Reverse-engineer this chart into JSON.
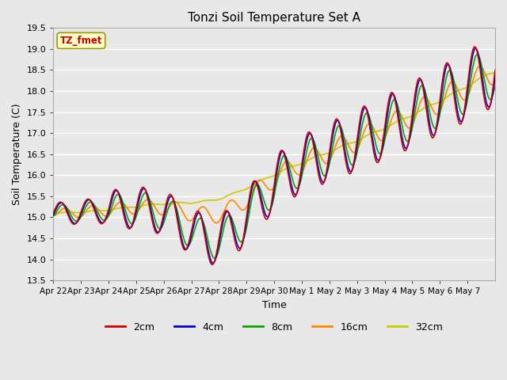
{
  "title": "Tonzi Soil Temperature Set A",
  "xlabel": "Time",
  "ylabel": "Soil Temperature (C)",
  "ylim": [
    13.5,
    19.5
  ],
  "yticks": [
    13.5,
    14.0,
    14.5,
    15.0,
    15.5,
    16.0,
    16.5,
    17.0,
    17.5,
    18.0,
    18.5,
    19.0,
    19.5
  ],
  "color_2cm": "#cc0000",
  "color_4cm": "#0000cc",
  "color_8cm": "#00aa00",
  "color_16cm": "#ff8800",
  "color_32cm": "#cccc00",
  "annotation_text": "TZ_fmet",
  "annotation_fg": "#cc0000",
  "annotation_bg": "#ffffcc",
  "bg_color": "#e8e8e8",
  "grid_color": "#ffffff",
  "legend_items": [
    "2cm",
    "4cm",
    "8cm",
    "16cm",
    "32cm"
  ],
  "legend_colors": [
    "#cc0000",
    "#0000cc",
    "#00aa00",
    "#ff8800",
    "#cccc00"
  ],
  "xtick_labels": [
    "Apr 22",
    "Apr 23",
    "Apr 24",
    "Apr 25",
    "Apr 26",
    "Apr 27",
    "Apr 28",
    "Apr 29",
    "Apr 30",
    "May 1",
    "May 2",
    "May 3",
    "May 4",
    "May 5",
    "May 6",
    "May 7"
  ],
  "n_days": 16,
  "linewidth": 1.2
}
